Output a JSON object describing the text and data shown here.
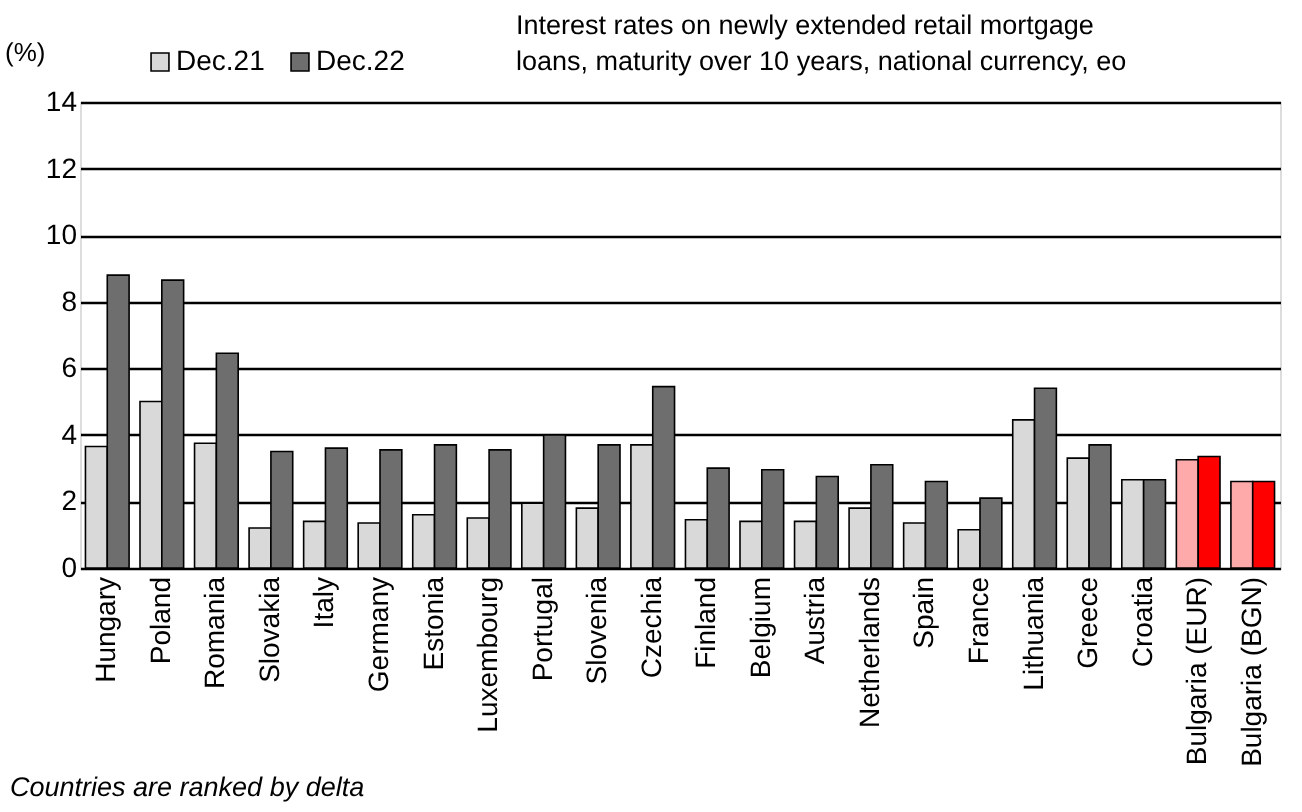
{
  "chart_data": {
    "type": "bar",
    "title": [
      "Interest rates on newly extended retail mortgage",
      "loans, maturity over 10 years, national currency, eo"
    ],
    "ylabel": "(%)",
    "categories": [
      "Hungary",
      "Poland",
      "Romania",
      "Slovakia",
      "Italy",
      "Germany",
      "Estonia",
      "Luxembourg",
      "Portugal",
      "Slovenia",
      "Czechia",
      "Finland",
      "Belgium",
      "Austria",
      "Netherlands",
      "Spain",
      "France",
      "Lithuania",
      "Greece",
      "Croatia",
      "Bulgaria (EUR)",
      "Bulgaria (BGN)"
    ],
    "series": [
      {
        "name": "Dec.21",
        "color": "#d9d9d9",
        "colors": [
          "#d9d9d9",
          "#d9d9d9",
          "#d9d9d9",
          "#d9d9d9",
          "#d9d9d9",
          "#d9d9d9",
          "#d9d9d9",
          "#d9d9d9",
          "#d9d9d9",
          "#d9d9d9",
          "#d9d9d9",
          "#d9d9d9",
          "#d9d9d9",
          "#d9d9d9",
          "#d9d9d9",
          "#d9d9d9",
          "#d9d9d9",
          "#d9d9d9",
          "#d9d9d9",
          "#d9d9d9",
          "#ffaaaa",
          "#ffaaaa"
        ],
        "values": [
          3.65,
          5.0,
          3.75,
          1.2,
          1.4,
          1.35,
          1.6,
          1.5,
          1.95,
          1.8,
          3.7,
          1.45,
          1.4,
          1.4,
          1.8,
          1.35,
          1.15,
          4.45,
          3.3,
          2.65,
          3.25,
          2.6
        ]
      },
      {
        "name": "Dec.22",
        "color": "#6e6e6e",
        "colors": [
          "#6e6e6e",
          "#6e6e6e",
          "#6e6e6e",
          "#6e6e6e",
          "#6e6e6e",
          "#6e6e6e",
          "#6e6e6e",
          "#6e6e6e",
          "#6e6e6e",
          "#6e6e6e",
          "#6e6e6e",
          "#6e6e6e",
          "#6e6e6e",
          "#6e6e6e",
          "#6e6e6e",
          "#6e6e6e",
          "#6e6e6e",
          "#6e6e6e",
          "#6e6e6e",
          "#6e6e6e",
          "#ff0000",
          "#ff0000"
        ],
        "values": [
          8.8,
          8.65,
          6.45,
          3.5,
          3.6,
          3.55,
          3.7,
          3.55,
          4.0,
          3.7,
          5.45,
          3.0,
          2.95,
          2.75,
          3.1,
          2.6,
          2.1,
          5.4,
          3.7,
          2.65,
          3.35,
          2.6
        ]
      }
    ],
    "ylim": [
      0,
      14
    ],
    "yticks": [
      0,
      2,
      4,
      6,
      8,
      10,
      12,
      14
    ],
    "grid": "y",
    "legend": "top left",
    "annotations": [
      "Countries are ranked by delta"
    ]
  }
}
